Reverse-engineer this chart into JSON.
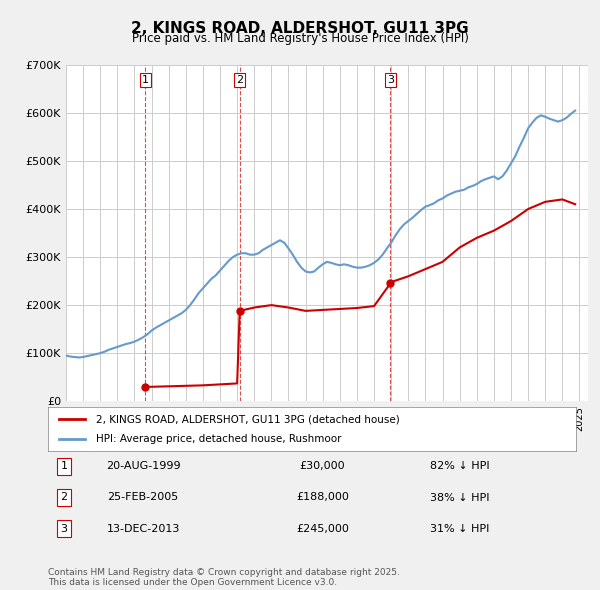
{
  "title": "2, KINGS ROAD, ALDERSHOT, GU11 3PG",
  "subtitle": "Price paid vs. HM Land Registry's House Price Index (HPI)",
  "xlabel": "",
  "ylabel": "",
  "ylim": [
    0,
    700000
  ],
  "xlim_start": 1995.0,
  "xlim_end": 2025.5,
  "yticks": [
    0,
    100000,
    200000,
    300000,
    400000,
    500000,
    600000,
    700000
  ],
  "ytick_labels": [
    "£0",
    "£100K",
    "£200K",
    "£300K",
    "£400K",
    "£500K",
    "£600K",
    "£700K"
  ],
  "background_color": "#f0f0f0",
  "plot_background_color": "#ffffff",
  "grid_color": "#cccccc",
  "sale_color": "#cc0000",
  "hpi_color": "#6699cc",
  "sale_points": [
    {
      "year": 1999.64,
      "price": 30000,
      "label": "1"
    },
    {
      "year": 2005.15,
      "price": 188000,
      "label": "2"
    },
    {
      "year": 2013.95,
      "price": 245000,
      "label": "3"
    }
  ],
  "legend_sale_label": "2, KINGS ROAD, ALDERSHOT, GU11 3PG (detached house)",
  "legend_hpi_label": "HPI: Average price, detached house, Rushmoor",
  "table_rows": [
    {
      "num": "1",
      "date": "20-AUG-1999",
      "price": "£30,000",
      "pct": "82% ↓ HPI"
    },
    {
      "num": "2",
      "date": "25-FEB-2005",
      "price": "£188,000",
      "pct": "38% ↓ HPI"
    },
    {
      "num": "3",
      "date": "13-DEC-2013",
      "price": "£245,000",
      "pct": "31% ↓ HPI"
    }
  ],
  "footer": "Contains HM Land Registry data © Crown copyright and database right 2025.\nThis data is licensed under the Open Government Licence v3.0.",
  "hpi_data": {
    "years": [
      1995.0,
      1995.25,
      1995.5,
      1995.75,
      1996.0,
      1996.25,
      1996.5,
      1996.75,
      1997.0,
      1997.25,
      1997.5,
      1997.75,
      1998.0,
      1998.25,
      1998.5,
      1998.75,
      1999.0,
      1999.25,
      1999.5,
      1999.75,
      2000.0,
      2000.25,
      2000.5,
      2000.75,
      2001.0,
      2001.25,
      2001.5,
      2001.75,
      2002.0,
      2002.25,
      2002.5,
      2002.75,
      2003.0,
      2003.25,
      2003.5,
      2003.75,
      2004.0,
      2004.25,
      2004.5,
      2004.75,
      2005.0,
      2005.25,
      2005.5,
      2005.75,
      2006.0,
      2006.25,
      2006.5,
      2006.75,
      2007.0,
      2007.25,
      2007.5,
      2007.75,
      2008.0,
      2008.25,
      2008.5,
      2008.75,
      2009.0,
      2009.25,
      2009.5,
      2009.75,
      2010.0,
      2010.25,
      2010.5,
      2010.75,
      2011.0,
      2011.25,
      2011.5,
      2011.75,
      2012.0,
      2012.25,
      2012.5,
      2012.75,
      2013.0,
      2013.25,
      2013.5,
      2013.75,
      2014.0,
      2014.25,
      2014.5,
      2014.75,
      2015.0,
      2015.25,
      2015.5,
      2015.75,
      2016.0,
      2016.25,
      2016.5,
      2016.75,
      2017.0,
      2017.25,
      2017.5,
      2017.75,
      2018.0,
      2018.25,
      2018.5,
      2018.75,
      2019.0,
      2019.25,
      2019.5,
      2019.75,
      2020.0,
      2020.25,
      2020.5,
      2020.75,
      2021.0,
      2021.25,
      2021.5,
      2021.75,
      2022.0,
      2022.25,
      2022.5,
      2022.75,
      2023.0,
      2023.25,
      2023.5,
      2023.75,
      2024.0,
      2024.25,
      2024.5,
      2024.75
    ],
    "values": [
      95000,
      93000,
      92000,
      91000,
      92000,
      94000,
      96000,
      98000,
      100000,
      103000,
      107000,
      110000,
      113000,
      116000,
      119000,
      121000,
      124000,
      128000,
      133000,
      139000,
      147000,
      153000,
      158000,
      163000,
      168000,
      173000,
      178000,
      183000,
      190000,
      200000,
      212000,
      225000,
      235000,
      245000,
      255000,
      262000,
      272000,
      282000,
      292000,
      300000,
      305000,
      308000,
      308000,
      305000,
      305000,
      308000,
      315000,
      320000,
      325000,
      330000,
      335000,
      330000,
      318000,
      305000,
      290000,
      278000,
      270000,
      268000,
      270000,
      278000,
      285000,
      290000,
      288000,
      285000,
      283000,
      285000,
      283000,
      280000,
      278000,
      278000,
      280000,
      283000,
      288000,
      295000,
      305000,
      318000,
      330000,
      345000,
      358000,
      368000,
      375000,
      382000,
      390000,
      398000,
      405000,
      408000,
      412000,
      418000,
      422000,
      428000,
      432000,
      436000,
      438000,
      440000,
      445000,
      448000,
      452000,
      458000,
      462000,
      465000,
      468000,
      462000,
      468000,
      480000,
      495000,
      510000,
      530000,
      548000,
      568000,
      580000,
      590000,
      595000,
      592000,
      588000,
      585000,
      582000,
      585000,
      590000,
      598000,
      605000
    ]
  },
  "sale_line_data": {
    "years": [
      1995.0,
      1996.0,
      1997.0,
      1998.0,
      1999.0,
      1999.64,
      2000.0,
      2001.0,
      2002.0,
      2003.0,
      2004.0,
      2005.0,
      2005.15,
      2006.0,
      2007.0,
      2008.0,
      2009.0,
      2010.0,
      2011.0,
      2012.0,
      2013.0,
      2013.95,
      2014.0,
      2015.0,
      2016.0,
      2017.0,
      2018.0,
      2019.0,
      2020.0,
      2021.0,
      2022.0,
      2023.0,
      2024.0,
      2024.75
    ],
    "values": [
      null,
      null,
      null,
      null,
      null,
      30000,
      30000,
      31000,
      32000,
      33000,
      35000,
      37000,
      188000,
      195000,
      200000,
      195000,
      188000,
      190000,
      192000,
      194000,
      198000,
      245000,
      248000,
      260000,
      275000,
      290000,
      320000,
      340000,
      355000,
      375000,
      400000,
      415000,
      420000,
      410000
    ]
  }
}
